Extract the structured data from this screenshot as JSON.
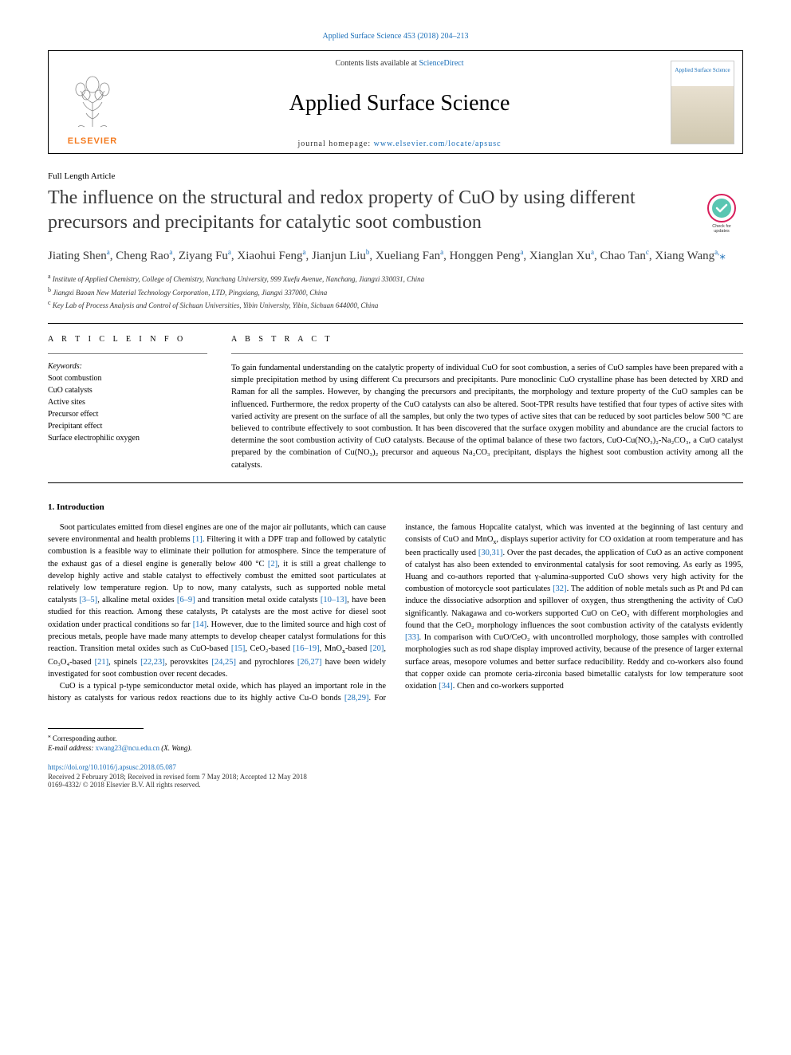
{
  "header_citation": "Applied Surface Science 453 (2018) 204–213",
  "masthead": {
    "contents_text": "Contents lists available at ",
    "contents_link": "ScienceDirect",
    "journal_name": "Applied Surface Science",
    "homepage_text": "journal homepage: ",
    "homepage_link": "www.elsevier.com/locate/apsusc",
    "publisher_logo_text": "ELSEVIER",
    "cover_text": "Applied Surface Science"
  },
  "article_type": "Full Length Article",
  "title": "The influence on the structural and redox property of CuO by using different precursors and precipitants for catalytic soot combustion",
  "check_updates_label": "Check for updates",
  "authors_html": "Jiating Shen<sup>a</sup>, Cheng Rao<sup>a</sup>, Ziyang Fu<sup>a</sup>, Xiaohui Feng<sup>a</sup>, Jianjun Liu<sup>b</sup>, Xueliang Fan<sup>a</sup>, Honggen Peng<sup>a</sup>, Xianglan Xu<sup>a</sup>, Chao Tan<sup>c</sup>, Xiang Wang<sup>a,</sup><span class='corr'>⁎</span>",
  "affiliations": [
    {
      "sup": "a",
      "text": "Institute of Applied Chemistry, College of Chemistry, Nanchang University, 999 Xuefu Avenue, Nanchang, Jiangxi 330031, China"
    },
    {
      "sup": "b",
      "text": "Jiangxi Baoan New Material Technology Corporation, LTD, Pingxiang, Jiangxi 337000, China"
    },
    {
      "sup": "c",
      "text": "Key Lab of Process Analysis and Control of Sichuan Universities, Yibin University, Yibin, Sichuan 644000, China"
    }
  ],
  "article_info_heading": "A R T I C L E  I N F O",
  "keywords_label": "Keywords:",
  "keywords": [
    "Soot combustion",
    "CuO catalysts",
    "Active sites",
    "Precursor effect",
    "Precipitant effect",
    "Surface electrophilic oxygen"
  ],
  "abstract_heading": "A B S T R A C T",
  "abstract_text": "To gain fundamental understanding on the catalytic property of individual CuO for soot combustion, a series of CuO samples have been prepared with a simple precipitation method by using different Cu precursors and precipitants. Pure monoclinic CuO crystalline phase has been detected by XRD and Raman for all the samples. However, by changing the precursors and precipitants, the morphology and texture property of the CuO samples can be influenced. Furthermore, the redox property of the CuO catalysts can also be altered. Soot-TPR results have testified that four types of active sites with varied activity are present on the surface of all the samples, but only the two types of active sites that can be reduced by soot particles below 500 °C are believed to contribute effectively to soot combustion. It has been discovered that the surface oxygen mobility and abundance are the crucial factors to determine the soot combustion activity of CuO catalysts. Because of the optimal balance of these two factors, CuO-Cu(NO₃)₂-Na₂CO₃, a CuO catalyst prepared by the combination of Cu(NO₃)₂ precursor and aqueous Na₂CO₃ precipitant, displays the highest soot combustion activity among all the catalysts.",
  "intro_heading": "1. Introduction",
  "body_paragraphs": [
    "Soot particulates emitted from diesel engines are one of the major air pollutants, which can cause severe environmental and health problems <span class='cite'>[1]</span>. Filtering it with a DPF trap and followed by catalytic combustion is a feasible way to eliminate their pollution for atmosphere. Since the temperature of the exhaust gas of a diesel engine is generally below 400 °C <span class='cite'>[2]</span>, it is still a great challenge to develop highly active and stable catalyst to effectively combust the emitted soot particulates at relatively low temperature region. Up to now, many catalysts, such as supported noble metal catalysts <span class='cite'>[3–5]</span>, alkaline metal oxides <span class='cite'>[6–9]</span> and transition metal oxide catalysts <span class='cite'>[10–13]</span>, have been studied for this reaction. Among these catalysts, Pt catalysts are the most active for diesel soot oxidation under practical conditions so far <span class='cite'>[14]</span>. However, due to the limited source and high cost of precious metals, people have made many attempts to develop cheaper catalyst formulations for this reaction. Transition metal oxides such as CuO-based <span class='cite'>[15]</span>, CeO₂-based <span class='cite'>[16–19]</span>, MnO<sub>x</sub>-based <span class='cite'>[20]</span>, Co₃O₄-based <span class='cite'>[21]</span>, spinels <span class='cite'>[22,23]</span>, perovskites <span class='cite'>[24,25]</span> and pyrochlores <span class='cite'>[26,27]</span> have been widely investigated for soot combustion over recent decades.",
    "CuO is a typical p-type semiconductor metal oxide, which has played an important role in the history as catalysts for various redox reactions due to its highly active Cu-O bonds <span class='cite'>[28,29]</span>. For instance, the famous Hopcalite catalyst, which was invented at the beginning of last century and consists of CuO and MnO<sub>x</sub>, displays superior activity for CO oxidation at room temperature and has been practically used <span class='cite'>[30,31]</span>. Over the past decades, the application of CuO as an active component of catalyst has also been extended to environmental catalysis for soot removing. As early as 1995, Huang and co-authors reported that γ-alumina-supported CuO shows very high activity for the combustion of motorcycle soot particulates <span class='cite'>[32]</span>. The addition of noble metals such as Pt and Pd can induce the dissociative adsorption and spillover of oxygen, thus strengthening the activity of CuO significantly. Nakagawa and co-workers supported CuO on CeO₂ with different morphologies and found that the CeO₂ morphology influences the soot combustion activity of the catalysts evidently <span class='cite'>[33]</span>. In comparison with CuO/CeO₂ with uncontrolled morphology, those samples with controlled morphologies such as rod shape display improved activity, because of the presence of larger external surface areas, mesopore volumes and better surface reducibility. Reddy and co-workers also found that copper oxide can promote ceria-zirconia based bimetallic catalysts for low temperature soot oxidation <span class='cite'>[34]</span>. Chen and co-workers supported"
  ],
  "footer": {
    "corr_symbol": "⁎",
    "corr_text": "Corresponding author.",
    "email_label": "E-mail address:",
    "email": "xwang23@ncu.edu.cn",
    "email_suffix": "(X. Wang).",
    "doi": "https://doi.org/10.1016/j.apsusc.2018.05.087",
    "received": "Received 2 February 2018; Received in revised form 7 May 2018; Accepted 12 May 2018",
    "copyright": "0169-4332/ © 2018 Elsevier B.V. All rights reserved."
  },
  "colors": {
    "link": "#1a6eb8",
    "elsevier_orange": "#f47b20",
    "text": "#000000",
    "muted": "#333333"
  },
  "fonts": {
    "body": "Georgia, Times New Roman, serif",
    "title_size_pt": 24,
    "journal_size_pt": 28,
    "body_size_pt": 10.5,
    "small_size_pt": 9
  }
}
